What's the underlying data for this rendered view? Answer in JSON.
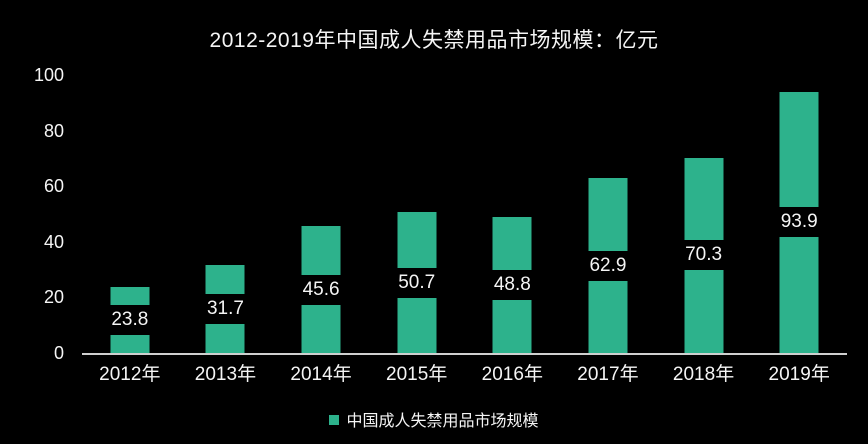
{
  "title": "2012-2019年中国成人失禁用品市场规模：亿元",
  "colors": {
    "background": "#000000",
    "bar": "#2db28c",
    "axis_line": "#cfcfcf",
    "text": "#f5f5f5",
    "value_label_bg": "#000000"
  },
  "chart_data": {
    "type": "bar",
    "title": "2012-2019年中国成人失禁用品市场规模：亿元",
    "categories": [
      "2012年",
      "2013年",
      "2014年",
      "2015年",
      "2016年",
      "2017年",
      "2018年",
      "2019年"
    ],
    "values": [
      23.8,
      31.7,
      45.6,
      50.7,
      48.8,
      62.9,
      70.3,
      93.9
    ],
    "series_name": "中国成人失禁用品市场规模",
    "unit_label": "亿元",
    "xlabel": "",
    "ylabel": "",
    "ylim": [
      0,
      100
    ],
    "yticks": [
      0,
      20,
      40,
      60,
      80,
      100
    ],
    "grid": false,
    "value_labels_position": "inside-center",
    "legend": {
      "label": "中国成人失禁用品市场规模",
      "position": "bottom"
    }
  }
}
